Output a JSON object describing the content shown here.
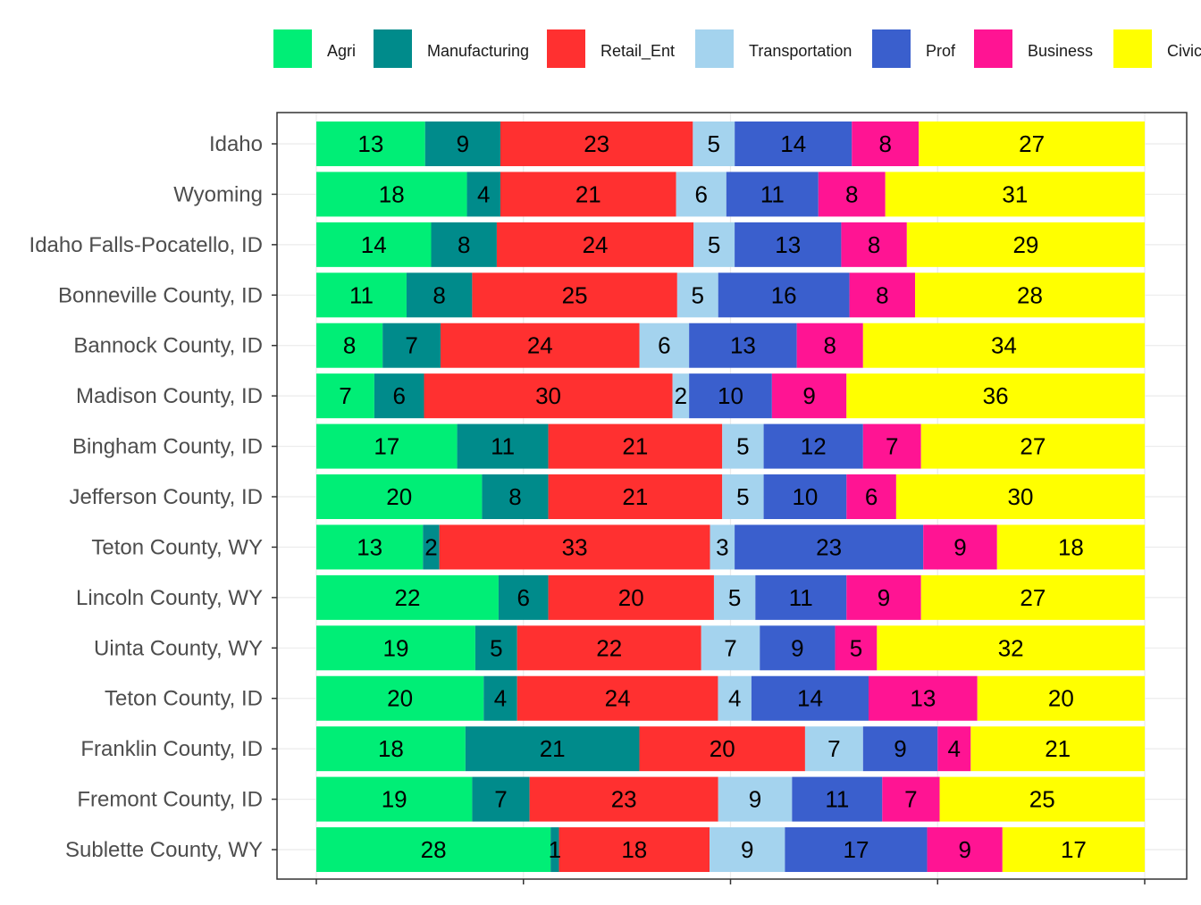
{
  "chart_data": {
    "type": "bar",
    "orientation": "horizontal",
    "stacked": true,
    "normalized": true,
    "title": "",
    "xlabel": "",
    "ylabel": "",
    "grid": true,
    "legend_position": "top",
    "categories": [
      "Idaho",
      "Wyoming",
      "Idaho Falls-Pocatello, ID",
      "Bonneville County, ID",
      "Bannock County, ID",
      "Madison County, ID",
      "Bingham County, ID",
      "Jefferson County, ID",
      "Teton County, WY",
      "Lincoln County, WY",
      "Uinta County, WY",
      "Teton County, ID",
      "Franklin County, ID",
      "Fremont County, ID",
      "Sublette County, WY"
    ],
    "series": [
      {
        "name": "Agri",
        "color": "#00EE76",
        "values": [
          13,
          18,
          14,
          11,
          8,
          7,
          17,
          20,
          13,
          22,
          19,
          20,
          18,
          19,
          28
        ]
      },
      {
        "name": "Manufacturing",
        "color": "#008B8B",
        "values": [
          9,
          4,
          8,
          8,
          7,
          6,
          11,
          8,
          2,
          6,
          5,
          4,
          21,
          7,
          1
        ]
      },
      {
        "name": "Retail_Ent",
        "color": "#FF3030",
        "values": [
          23,
          21,
          24,
          25,
          24,
          30,
          21,
          21,
          33,
          20,
          22,
          24,
          20,
          23,
          18
        ]
      },
      {
        "name": "Transportation",
        "color": "#A4D3EE",
        "values": [
          5,
          6,
          5,
          5,
          6,
          2,
          5,
          5,
          3,
          5,
          7,
          4,
          7,
          9,
          9
        ]
      },
      {
        "name": "Prof",
        "color": "#3A5FCD",
        "values": [
          14,
          11,
          13,
          16,
          13,
          10,
          12,
          10,
          23,
          11,
          9,
          14,
          9,
          11,
          17
        ]
      },
      {
        "name": "Business",
        "color": "#FF1493",
        "values": [
          8,
          8,
          8,
          8,
          8,
          9,
          7,
          6,
          9,
          9,
          5,
          13,
          4,
          7,
          9
        ]
      },
      {
        "name": "Civic",
        "color": "#FFFF00",
        "values": [
          27,
          31,
          29,
          28,
          34,
          36,
          27,
          30,
          18,
          27,
          32,
          20,
          21,
          25,
          17
        ]
      }
    ]
  }
}
